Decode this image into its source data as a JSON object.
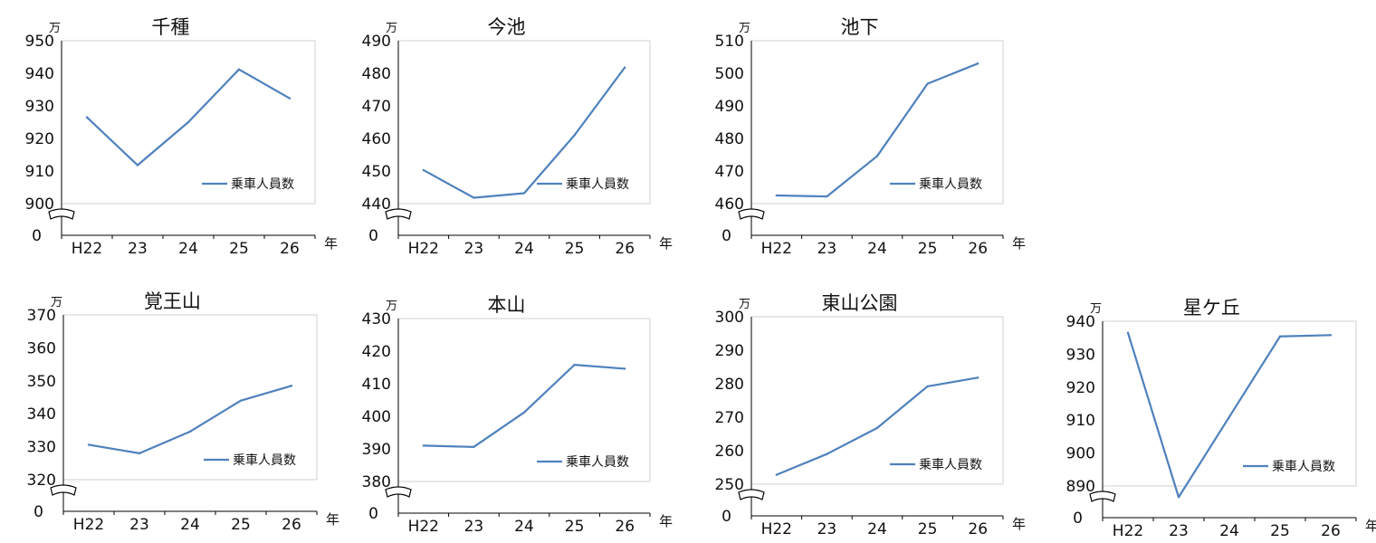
{
  "chart_data": [
    {
      "type": "line",
      "title": "千種",
      "unit": "万",
      "x_suffix": "年",
      "x": [
        "H22",
        "23",
        "24",
        "25",
        "26"
      ],
      "yticks": [
        900,
        910,
        920,
        930,
        940,
        950
      ],
      "ylim": [
        900,
        950
      ],
      "zero_label": "0",
      "series": [
        {
          "name": "乗車人員数",
          "values": [
            926.5,
            911.8,
            925.0,
            941.2,
            932.3
          ]
        }
      ],
      "grid": false,
      "legend": "lower-right"
    },
    {
      "type": "line",
      "title": "今池",
      "unit": "万",
      "x_suffix": "年",
      "x": [
        "H22",
        "23",
        "24",
        "25",
        "26"
      ],
      "yticks": [
        440,
        450,
        460,
        470,
        480,
        490
      ],
      "ylim": [
        440,
        490
      ],
      "zero_label": "0",
      "series": [
        {
          "name": "乗車人員数",
          "values": [
            450.3,
            441.8,
            443.2,
            461.0,
            481.8
          ]
        }
      ],
      "grid": false,
      "legend": "lower-right"
    },
    {
      "type": "line",
      "title": "池下",
      "unit": "万",
      "x_suffix": "年",
      "x": [
        "H22",
        "23",
        "24",
        "25",
        "26"
      ],
      "yticks": [
        460,
        470,
        480,
        490,
        500,
        510
      ],
      "ylim": [
        460,
        510
      ],
      "zero_label": "0",
      "series": [
        {
          "name": "乗車人員数",
          "values": [
            462.5,
            462.2,
            474.6,
            496.8,
            503.0
          ]
        }
      ],
      "grid": false,
      "legend": "lower-right"
    },
    {
      "type": "line",
      "title": "覚王山",
      "unit": "万",
      "x_suffix": "年",
      "x": [
        "H22",
        "23",
        "24",
        "25",
        "26"
      ],
      "yticks": [
        320,
        330,
        340,
        350,
        360,
        370
      ],
      "ylim": [
        320,
        370
      ],
      "zero_label": "0",
      "series": [
        {
          "name": "乗車人員数",
          "values": [
            330.6,
            328.0,
            334.6,
            344.0,
            348.5
          ]
        }
      ],
      "grid": false,
      "legend": "lower-right"
    },
    {
      "type": "line",
      "title": "本山",
      "unit": "万",
      "x_suffix": "年",
      "x": [
        "H22",
        "23",
        "24",
        "25",
        "26"
      ],
      "yticks": [
        380,
        390,
        400,
        410,
        420,
        430
      ],
      "ylim": [
        380,
        430
      ],
      "zero_label": "0",
      "series": [
        {
          "name": "乗車人員数",
          "values": [
            391.0,
            390.6,
            401.2,
            415.8,
            414.6
          ]
        }
      ],
      "grid": false,
      "legend": "lower-right"
    },
    {
      "type": "line",
      "title": "東山公園",
      "unit": "万",
      "x_suffix": "年",
      "x": [
        "H22",
        "23",
        "24",
        "25",
        "26"
      ],
      "yticks": [
        250,
        260,
        270,
        280,
        290,
        300
      ],
      "ylim": [
        250,
        300
      ],
      "zero_label": "0",
      "series": [
        {
          "name": "乗車人員数",
          "values": [
            252.8,
            259.0,
            266.8,
            279.2,
            281.8
          ]
        }
      ],
      "grid": false,
      "legend": "lower-right"
    },
    {
      "type": "line",
      "title": "星ケ丘",
      "unit": "万",
      "x_suffix": "年",
      "x": [
        "H22",
        "23",
        "24",
        "25",
        "26"
      ],
      "yticks": [
        890,
        900,
        910,
        920,
        930,
        940
      ],
      "ylim": [
        890,
        940
      ],
      "zero_label": "0",
      "series": [
        {
          "name": "乗車人員数",
          "values": [
            936.5,
            886.6,
            911.0,
            935.4,
            935.8
          ]
        }
      ],
      "grid": false,
      "legend": "lower-right"
    }
  ],
  "colors": {
    "line": "#4f81bd",
    "axis": "#000000",
    "text": "#111111"
  }
}
